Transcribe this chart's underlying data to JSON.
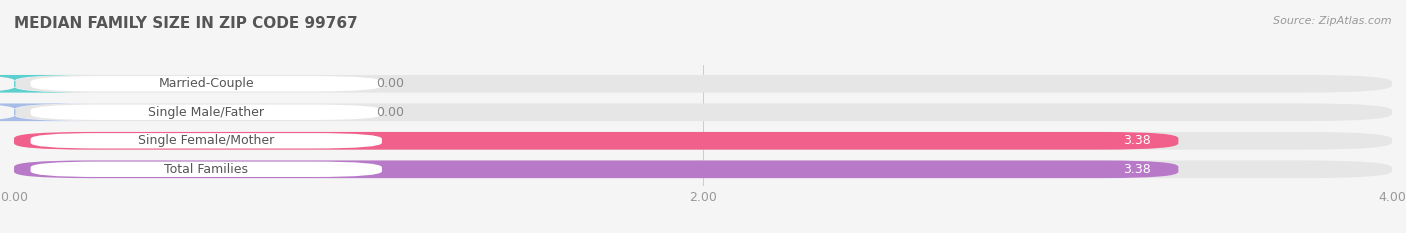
{
  "title": "MEDIAN FAMILY SIZE IN ZIP CODE 99767",
  "source": "Source: ZipAtlas.com",
  "categories": [
    "Married-Couple",
    "Single Male/Father",
    "Single Female/Mother",
    "Total Families"
  ],
  "values": [
    0.0,
    0.0,
    3.38,
    3.38
  ],
  "bar_colors": [
    "#5ecfcf",
    "#a8bce8",
    "#f0608a",
    "#b87ac8"
  ],
  "bar_labels": [
    "0.00",
    "0.00",
    "3.38",
    "3.38"
  ],
  "label_in_bar": [
    false,
    false,
    true,
    true
  ],
  "xlim": [
    0,
    4.0
  ],
  "xticks": [
    0.0,
    2.0,
    4.0
  ],
  "xtick_labels": [
    "0.00",
    "2.00",
    "4.00"
  ],
  "bg_color": "#f5f5f5",
  "bar_bg_color": "#e6e6e6",
  "label_bg_color": "#ffffff",
  "title_fontsize": 11,
  "source_fontsize": 8,
  "value_fontsize": 9,
  "tick_fontsize": 9,
  "category_fontsize": 9
}
